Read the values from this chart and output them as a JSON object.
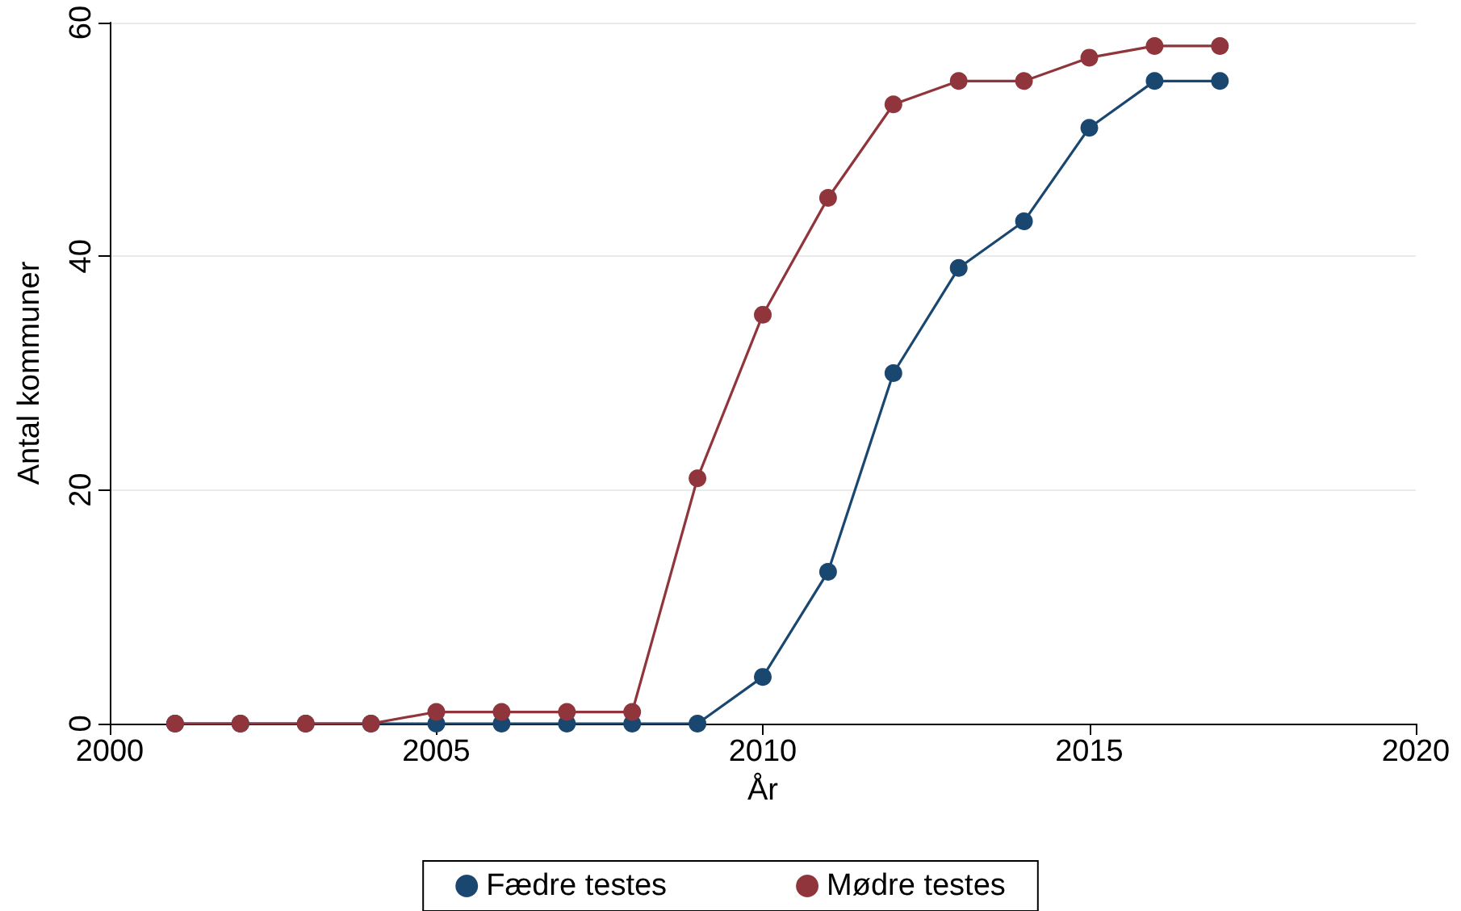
{
  "chart_data": {
    "type": "line",
    "xlabel": "År",
    "ylabel": "Antal kommuner",
    "x": [
      2001,
      2002,
      2003,
      2004,
      2005,
      2006,
      2007,
      2008,
      2009,
      2010,
      2011,
      2012,
      2013,
      2014,
      2015,
      2016,
      2017
    ],
    "series": [
      {
        "name": "Fædre testes",
        "color": "#1a476f",
        "values": [
          0,
          0,
          0,
          0,
          0,
          0,
          0,
          0,
          0,
          4,
          13,
          30,
          39,
          43,
          51,
          55,
          55
        ]
      },
      {
        "name": "Mødre testes",
        "color": "#90353b",
        "values": [
          0,
          0,
          0,
          0,
          1,
          1,
          1,
          1,
          21,
          35,
          45,
          53,
          55,
          55,
          57,
          58,
          58
        ]
      }
    ],
    "xlim": [
      2000,
      2020
    ],
    "xticks": [
      2000,
      2005,
      2010,
      2015,
      2020
    ],
    "ylim": [
      0,
      60
    ],
    "yticks": [
      0,
      20,
      40,
      60
    ],
    "grid": "y",
    "legend": "bottom",
    "marker": "circle",
    "line_style": "solid"
  }
}
